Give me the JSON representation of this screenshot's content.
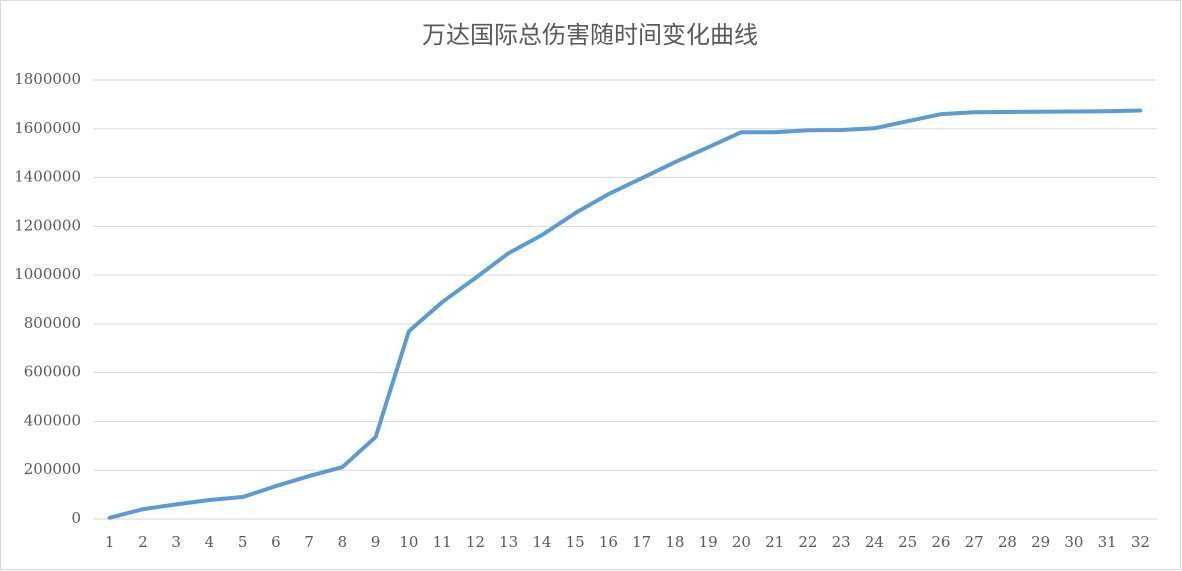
{
  "chart_data": {
    "type": "line",
    "title": "万达国际总伤害随时间变化曲线",
    "categories": [
      "1",
      "2",
      "3",
      "4",
      "5",
      "6",
      "7",
      "8",
      "9",
      "10",
      "11",
      "12",
      "13",
      "14",
      "15",
      "16",
      "17",
      "18",
      "19",
      "20",
      "21",
      "22",
      "23",
      "24",
      "25",
      "26",
      "27",
      "28",
      "29",
      "30",
      "31",
      "32"
    ],
    "series": [
      {
        "name": "总伤害",
        "color": "#5b9bd5",
        "values": [
          5000,
          40000,
          60000,
          78000,
          90000,
          135000,
          176000,
          213000,
          336000,
          770000,
          889000,
          988000,
          1090000,
          1164000,
          1254000,
          1332000,
          1397000,
          1463000,
          1524000,
          1586000,
          1586000,
          1594000,
          1595000,
          1602000,
          1631000,
          1660000,
          1668000,
          1669000,
          1670000,
          1671000,
          1672000,
          1675000
        ]
      }
    ],
    "ylim": [
      0,
      1800000
    ],
    "yticks": [
      0,
      200000,
      400000,
      600000,
      800000,
      1000000,
      1200000,
      1400000,
      1600000,
      1800000
    ],
    "grid": true
  }
}
